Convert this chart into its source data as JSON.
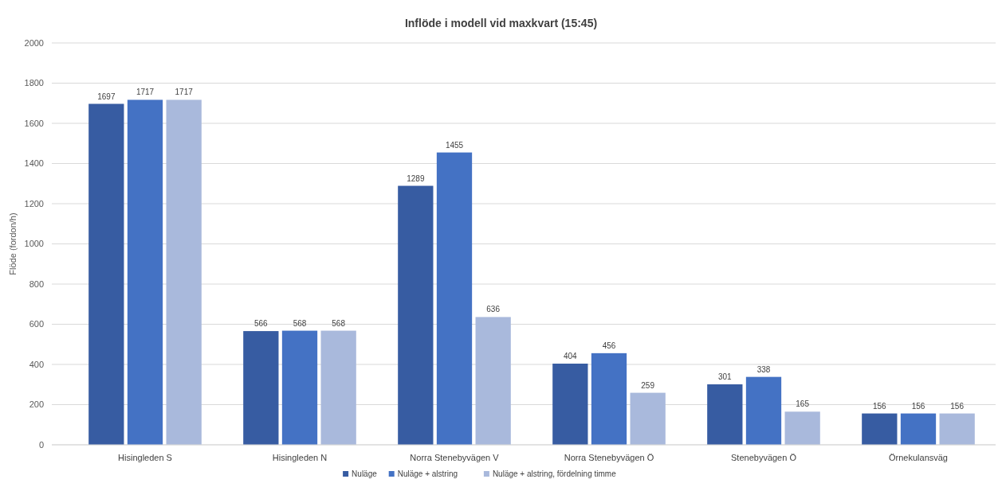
{
  "chart_data": {
    "type": "bar",
    "title": "Inflöde i modell vid maxkvart (15:45)",
    "ylabel": "Flöde (fordon/h)",
    "categories": [
      "Hisingleden S",
      "Hisingleden N",
      "Norra Stenebyvägen V",
      "Norra Stenebyvägen Ö",
      "Stenebyvägen Ö",
      "Örnekulansväg"
    ],
    "series": [
      {
        "name": "Nuläge",
        "color": "#375ca2",
        "values": [
          1697,
          566,
          1289,
          404,
          301,
          156
        ]
      },
      {
        "name": "Nuläge + alstring",
        "color": "#4472c4",
        "values": [
          1717,
          568,
          1455,
          456,
          338,
          156
        ]
      },
      {
        "name": "Nuläge + alstring, fördelning timme",
        "color": "#a9b9dc",
        "values": [
          1717,
          568,
          636,
          259,
          165,
          156
        ]
      }
    ],
    "ylim": [
      0,
      2000
    ],
    "yticks": [
      0,
      200,
      400,
      600,
      800,
      1000,
      1200,
      1400,
      1600,
      1800,
      2000
    ],
    "grid": "y",
    "data_labels": true,
    "legend": "bottom"
  }
}
